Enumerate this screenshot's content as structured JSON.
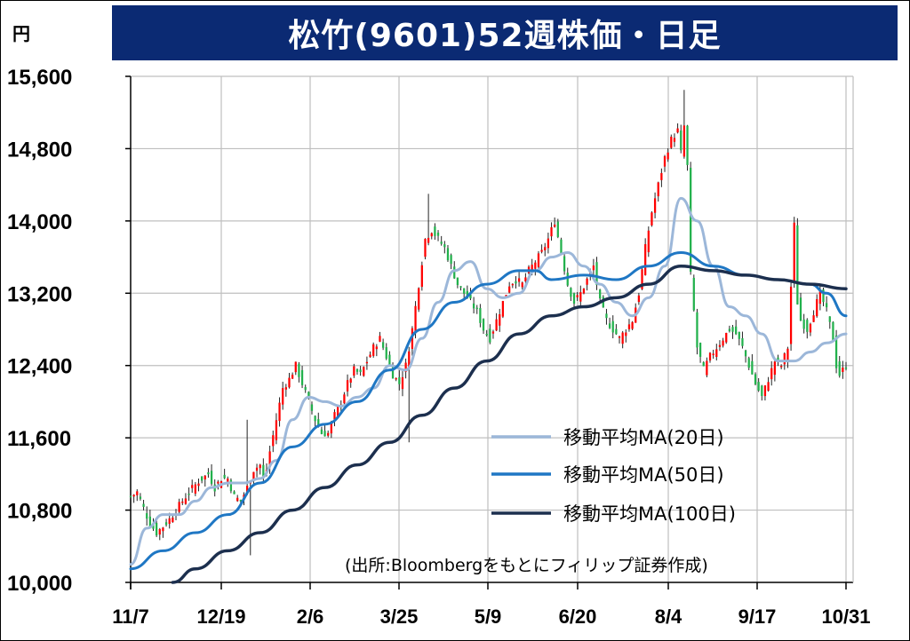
{
  "unit_label": "円",
  "title": "松竹(9601)52週株価・日足",
  "source_note": "(出所:Bloombergをもとにフィリップ証券作成)",
  "colors": {
    "title_bg": "#0b2a73",
    "up_candle": "#ff0000",
    "down_candle": "#22b14c",
    "ma20": "#9cb7d9",
    "ma50": "#1f77c4",
    "ma100": "#1c2f4e",
    "grid": "#bfbfbf"
  },
  "chart_data": {
    "type": "line",
    "subtype": "candlestick",
    "title": "松竹(9601)52週株価・日足",
    "ylabel": "円",
    "ylim": [
      10000,
      15600
    ],
    "yticks": [
      10000,
      10800,
      11600,
      12400,
      13200,
      14000,
      14800,
      15600
    ],
    "ytick_labels": [
      "10,000",
      "10,800",
      "11,600",
      "12,400",
      "13,200",
      "14,000",
      "14,800",
      "15,600"
    ],
    "x_categories": [
      "11/7",
      "12/19",
      "2/6",
      "3/25",
      "5/9",
      "6/20",
      "8/4",
      "9/17",
      "10/31"
    ],
    "grid": true,
    "legend_position": "bottom-right",
    "legend": [
      "移動平均MA(20日)",
      "移動平均MA(50日)",
      "移動平均MA(100日)"
    ],
    "price_path": [
      [
        0,
        10950
      ],
      [
        2,
        11000
      ],
      [
        4,
        10820
      ],
      [
        6,
        10650
      ],
      [
        8,
        10550
      ],
      [
        10,
        10620
      ],
      [
        12,
        10700
      ],
      [
        15,
        10850
      ],
      [
        18,
        11000
      ],
      [
        21,
        11120
      ],
      [
        24,
        11200
      ],
      [
        26,
        11050
      ],
      [
        28,
        11150
      ],
      [
        30,
        11150
      ],
      [
        32,
        10950
      ],
      [
        34,
        10900
      ],
      [
        36,
        11050
      ],
      [
        38,
        11250
      ],
      [
        40,
        11300
      ],
      [
        41,
        11150
      ],
      [
        42,
        11250
      ],
      [
        43,
        11450
      ],
      [
        45,
        11800
      ],
      [
        47,
        12150
      ],
      [
        49,
        12250
      ],
      [
        51,
        12400
      ],
      [
        53,
        12200
      ],
      [
        55,
        12000
      ],
      [
        57,
        11800
      ],
      [
        59,
        11650
      ],
      [
        61,
        11650
      ],
      [
        63,
        11850
      ],
      [
        65,
        12000
      ],
      [
        67,
        12200
      ],
      [
        69,
        12350
      ],
      [
        71,
        12300
      ],
      [
        73,
        12450
      ],
      [
        75,
        12600
      ],
      [
        77,
        12700
      ],
      [
        79,
        12500
      ],
      [
        81,
        12300
      ],
      [
        83,
        12200
      ],
      [
        85,
        12400
      ],
      [
        87,
        12800
      ],
      [
        89,
        13300
      ],
      [
        91,
        13800
      ],
      [
        93,
        13900
      ],
      [
        95,
        13800
      ],
      [
        97,
        13700
      ],
      [
        99,
        13500
      ],
      [
        101,
        13300
      ],
      [
        103,
        13200
      ],
      [
        105,
        13100
      ],
      [
        107,
        13000
      ],
      [
        109,
        12800
      ],
      [
        111,
        12700
      ],
      [
        113,
        12900
      ],
      [
        115,
        13100
      ],
      [
        117,
        13300
      ],
      [
        119,
        13350
      ],
      [
        121,
        13300
      ],
      [
        123,
        13450
      ],
      [
        125,
        13550
      ],
      [
        127,
        13650
      ],
      [
        129,
        13800
      ],
      [
        131,
        14000
      ],
      [
        133,
        13650
      ],
      [
        135,
        13300
      ],
      [
        137,
        13100
      ],
      [
        139,
        13200
      ],
      [
        141,
        13350
      ],
      [
        143,
        13500
      ],
      [
        145,
        13100
      ],
      [
        147,
        12900
      ],
      [
        149,
        12800
      ],
      [
        151,
        12700
      ],
      [
        153,
        12800
      ],
      [
        155,
        12900
      ],
      [
        157,
        13200
      ],
      [
        159,
        13700
      ],
      [
        161,
        14100
      ],
      [
        163,
        14400
      ],
      [
        165,
        14700
      ],
      [
        167,
        14900
      ],
      [
        169,
        15000
      ],
      [
        170,
        14750
      ],
      [
        171,
        15050
      ],
      [
        172,
        14600
      ],
      [
        173,
        13400
      ],
      [
        174,
        13000
      ],
      [
        175,
        12600
      ],
      [
        177,
        12350
      ],
      [
        179,
        12500
      ],
      [
        181,
        12600
      ],
      [
        183,
        12700
      ],
      [
        185,
        12800
      ],
      [
        187,
        12750
      ],
      [
        189,
        12600
      ],
      [
        191,
        12400
      ],
      [
        193,
        12200
      ],
      [
        195,
        12050
      ],
      [
        197,
        12250
      ],
      [
        199,
        12450
      ],
      [
        201,
        12400
      ],
      [
        203,
        12600
      ],
      [
        205,
        13950
      ],
      [
        206,
        13100
      ],
      [
        207,
        12900
      ],
      [
        209,
        12800
      ],
      [
        211,
        13000
      ],
      [
        213,
        13200
      ],
      [
        215,
        13000
      ],
      [
        217,
        12700
      ],
      [
        218,
        12400
      ],
      [
        219,
        12300
      ],
      [
        220,
        12350
      ],
      [
        221,
        12400
      ]
    ],
    "spikes": [
      {
        "day": 86,
        "low": 11550
      },
      {
        "day": 37,
        "low": 10300
      },
      {
        "day": 36,
        "high": 11800
      },
      {
        "day": 92,
        "high": 14300
      },
      {
        "day": 171,
        "high": 15450
      }
    ],
    "series": [
      {
        "name": "移動平均MA(20日)",
        "x": [
          0,
          5,
          10,
          15,
          20,
          25,
          30,
          35,
          40,
          45,
          50,
          55,
          60,
          65,
          70,
          75,
          80,
          85,
          90,
          95,
          100,
          105,
          110,
          115,
          120,
          125,
          130,
          135,
          140,
          145,
          150,
          155,
          160,
          165,
          170,
          175,
          180,
          185,
          190,
          195,
          200,
          205,
          210,
          215,
          221
        ],
        "values": [
          10200,
          10600,
          10750,
          10750,
          10900,
          11050,
          11100,
          11100,
          11150,
          11350,
          11800,
          12050,
          12000,
          11950,
          12050,
          12150,
          12400,
          12350,
          12700,
          13100,
          13450,
          13550,
          13250,
          13150,
          13200,
          13450,
          13600,
          13650,
          13500,
          13300,
          13100,
          12950,
          13150,
          13500,
          14250,
          14000,
          13500,
          13050,
          12950,
          12750,
          12450,
          12450,
          12550,
          12650,
          12750
        ]
      },
      {
        "name": "移動平均MA(50日)",
        "x": [
          0,
          10,
          20,
          30,
          40,
          50,
          60,
          70,
          80,
          90,
          100,
          110,
          120,
          125,
          130,
          140,
          150,
          160,
          170,
          180,
          190,
          200,
          210,
          215,
          221
        ],
        "values": [
          10150,
          10350,
          10550,
          10750,
          11100,
          11500,
          11750,
          12000,
          12350,
          12800,
          13100,
          13300,
          13450,
          13450,
          13350,
          13400,
          13350,
          13500,
          13650,
          13500,
          13400,
          13350,
          13300,
          13200,
          12950
        ]
      },
      {
        "name": "移動平均MA(100日)",
        "x": [
          13,
          20,
          30,
          40,
          50,
          60,
          70,
          80,
          90,
          100,
          110,
          120,
          130,
          140,
          150,
          160,
          170,
          180,
          190,
          200,
          210,
          221
        ],
        "values": [
          10000,
          10150,
          10350,
          10550,
          10800,
          11050,
          11300,
          11550,
          11850,
          12150,
          12450,
          12750,
          12950,
          13050,
          13150,
          13300,
          13500,
          13450,
          13400,
          13350,
          13300,
          13250
        ]
      }
    ]
  }
}
